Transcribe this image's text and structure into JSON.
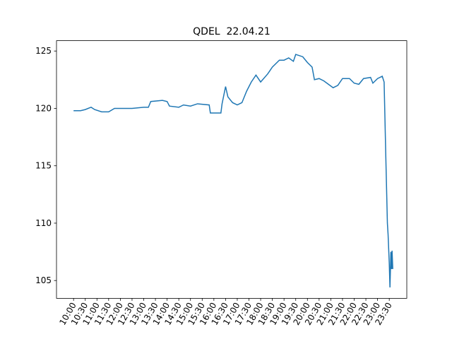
{
  "chart_data": {
    "type": "line",
    "title": "QDEL  22.04.21",
    "x": [
      10.0,
      10.3,
      10.5,
      10.75,
      10.9,
      11.2,
      11.5,
      11.75,
      12.0,
      12.5,
      13.0,
      13.2,
      13.3,
      13.8,
      14.0,
      14.1,
      14.5,
      14.7,
      15.0,
      15.3,
      15.8,
      15.85,
      16.3,
      16.35,
      16.5,
      16.6,
      16.8,
      17.0,
      17.2,
      17.4,
      17.6,
      17.8,
      18.0,
      18.3,
      18.5,
      18.8,
      19.0,
      19.2,
      19.4,
      19.5,
      19.8,
      20.0,
      20.2,
      20.3,
      20.5,
      20.7,
      20.9,
      21.1,
      21.3,
      21.5,
      21.8,
      22.0,
      22.2,
      22.4,
      22.7,
      22.8,
      23.0,
      23.2,
      23.28,
      23.35,
      23.42,
      23.45,
      23.5,
      23.53,
      23.57,
      23.6,
      23.62,
      23.65
    ],
    "series": [
      {
        "color": "#1f77b4",
        "values": [
          119.8,
          119.8,
          119.9,
          120.1,
          119.9,
          119.7,
          119.7,
          120.0,
          120.0,
          120.0,
          120.1,
          120.1,
          120.6,
          120.7,
          120.6,
          120.2,
          120.1,
          120.3,
          120.2,
          120.4,
          120.3,
          119.6,
          119.6,
          120.4,
          121.9,
          121.0,
          120.5,
          120.3,
          120.5,
          121.5,
          122.3,
          122.9,
          122.3,
          123.0,
          123.6,
          124.2,
          124.2,
          124.4,
          124.1,
          124.7,
          124.5,
          124.0,
          123.6,
          122.5,
          122.6,
          122.4,
          122.1,
          121.8,
          122.0,
          122.6,
          122.6,
          122.2,
          122.1,
          122.6,
          122.7,
          122.2,
          122.6,
          122.8,
          122.3,
          116,
          110,
          109.0,
          106.5,
          104.4,
          107.5,
          106.0,
          107.6,
          106.0
        ]
      }
    ],
    "xlim": [
      9.27,
      24.25
    ],
    "ylim": [
      103.45,
      125.9
    ],
    "yticks": [
      105,
      110,
      115,
      120,
      125
    ],
    "xticks": [
      {
        "value": 10,
        "label": "10:00"
      },
      {
        "value": 10.5,
        "label": "10:30"
      },
      {
        "value": 11,
        "label": "11:00"
      },
      {
        "value": 11.5,
        "label": "11:30"
      },
      {
        "value": 12,
        "label": "12:00"
      },
      {
        "value": 12.5,
        "label": "12:30"
      },
      {
        "value": 13,
        "label": "13:00"
      },
      {
        "value": 13.5,
        "label": "13:30"
      },
      {
        "value": 14,
        "label": "14:00"
      },
      {
        "value": 14.5,
        "label": "14:30"
      },
      {
        "value": 15,
        "label": "15:00"
      },
      {
        "value": 15.5,
        "label": "15:30"
      },
      {
        "value": 16,
        "label": "16:00"
      },
      {
        "value": 16.5,
        "label": "16:30"
      },
      {
        "value": 17,
        "label": "17:00"
      },
      {
        "value": 17.5,
        "label": "17:30"
      },
      {
        "value": 18,
        "label": "18:00"
      },
      {
        "value": 18.5,
        "label": "18:30"
      },
      {
        "value": 19,
        "label": "19:00"
      },
      {
        "value": 19.5,
        "label": "19:30"
      },
      {
        "value": 20,
        "label": "20:00"
      },
      {
        "value": 20.5,
        "label": "20:30"
      },
      {
        "value": 21,
        "label": "21:00"
      },
      {
        "value": 21.5,
        "label": "21:30"
      },
      {
        "value": 22,
        "label": "22:00"
      },
      {
        "value": 22.5,
        "label": "22:30"
      },
      {
        "value": 23,
        "label": "23:00"
      },
      {
        "value": 23.5,
        "label": "23:30"
      }
    ]
  }
}
